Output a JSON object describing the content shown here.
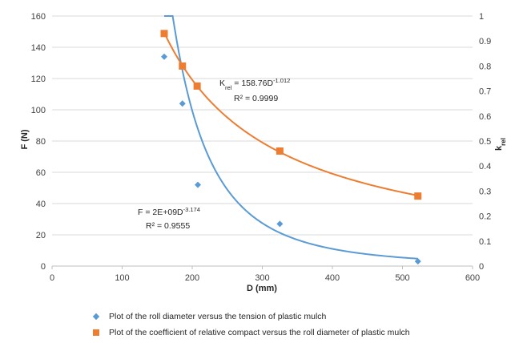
{
  "chart_data": {
    "type": "scatter",
    "xlabel": "D (mm)",
    "ylabel": "F (N)",
    "y2label_main": "k",
    "y2label_sub": "rel",
    "xlim": [
      0,
      600
    ],
    "ylim": [
      0,
      160
    ],
    "y2lim": [
      0,
      1
    ],
    "x_ticks": [
      "0",
      "100",
      "200",
      "300",
      "400",
      "500",
      "600"
    ],
    "y_ticks": [
      "0",
      "20",
      "40",
      "60",
      "80",
      "100",
      "120",
      "140",
      "160"
    ],
    "y2_ticks": [
      "0",
      "0.1",
      "0.2",
      "0.3",
      "0.4",
      "0.5",
      "0.6",
      "0.7",
      "0.8",
      "0.9",
      "1"
    ],
    "grid": "horizontal",
    "legend_position": "bottom",
    "series": [
      {
        "name": "Plot of the roll diameter versus the tension of plastic mulch",
        "axis": "left",
        "marker": "diamond",
        "color": "#5B9BD5",
        "points": [
          [
            160,
            134
          ],
          [
            186,
            104
          ],
          [
            208,
            52
          ],
          [
            325,
            27
          ],
          [
            522,
            3
          ]
        ],
        "trendline": {
          "type": "power",
          "a": 2000000000,
          "b": -3.174
        }
      },
      {
        "name": "Plot of the  coefficient of relative compact versus the roll diameter of plastic mulch",
        "axis": "right",
        "marker": "square",
        "color": "#ED7D31",
        "points": [
          [
            160,
            0.93
          ],
          [
            186,
            0.8
          ],
          [
            207,
            0.72
          ],
          [
            325,
            0.46
          ],
          [
            522,
            0.28
          ]
        ],
        "trendline": {
          "type": "power",
          "a": 158.76,
          "b": -1.012
        }
      }
    ],
    "annotations": {
      "orange_eq_main": "K",
      "orange_eq_sub": "rel",
      "orange_eq_rest": " = 158.76D",
      "orange_eq_exp": "-1.012",
      "orange_r2": "R² = 0.9999",
      "blue_eq_main": "F = 2E+09D",
      "blue_eq_exp": "-3.174",
      "blue_r2": "R² = 0.9555"
    }
  }
}
